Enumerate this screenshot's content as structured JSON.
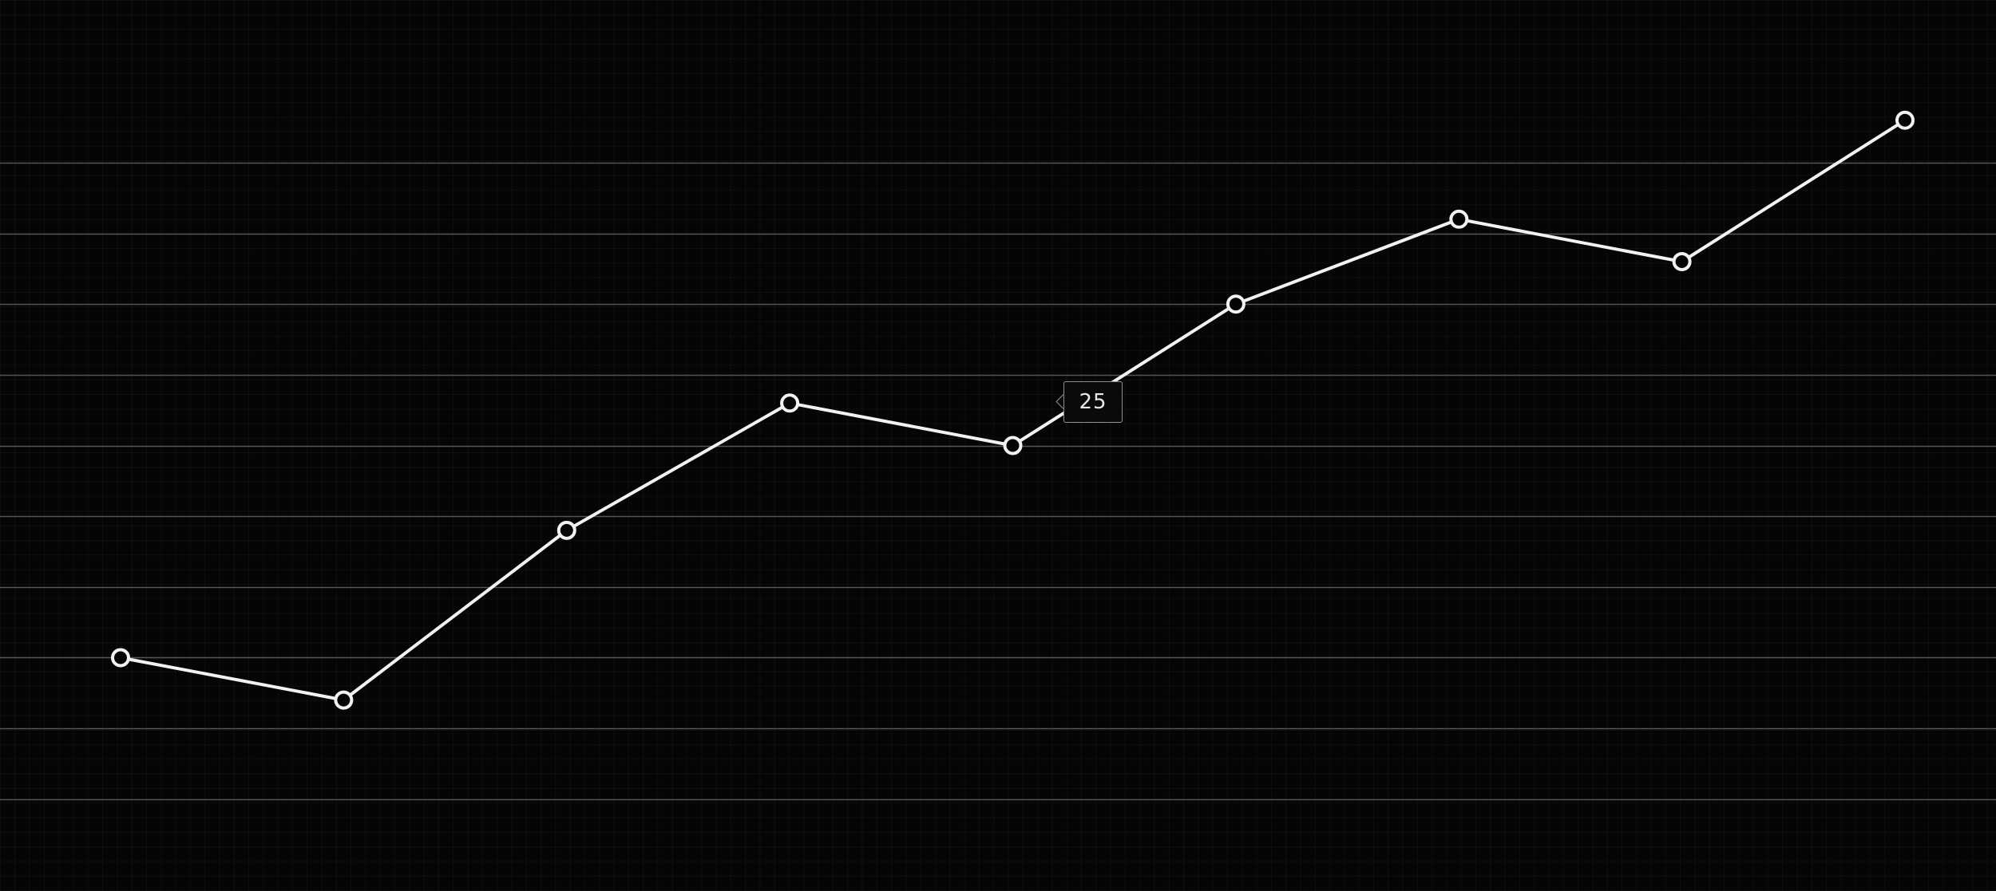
{
  "chart_data": {
    "type": "line",
    "title": "",
    "xlabel": "",
    "ylabel": "",
    "x": [
      1,
      2,
      3,
      4,
      5,
      6,
      7,
      8,
      9
    ],
    "series": [
      {
        "values": [
          10,
          7,
          19,
          28,
          25,
          35,
          41,
          38,
          48
        ]
      }
    ],
    "ylim": [
      -6.5,
      56.5
    ],
    "gridlines_y": [
      0,
      5,
      10,
      15,
      20,
      25,
      30,
      35,
      40,
      45
    ],
    "grid": true,
    "legend": "none",
    "tooltip": {
      "index": 4,
      "label": "25"
    },
    "colors": {
      "background": "#050505",
      "line": "#f2f2f2",
      "marker_fill": "#050505",
      "gridline": "#555555",
      "fine_grid": "#141414"
    }
  }
}
